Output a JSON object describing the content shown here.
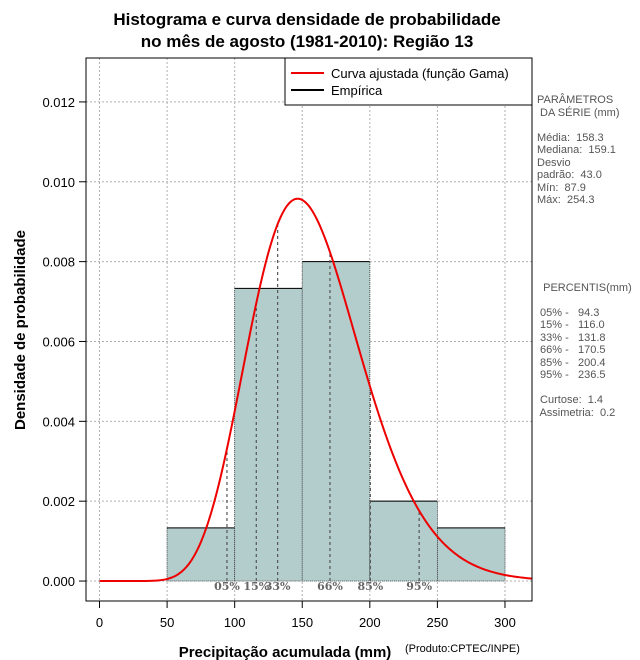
{
  "chart_data": {
    "type": "histogram",
    "title": [
      "Histograma e curva densidade de probabilidade",
      "no mês de agosto (1981-2010): Região 13"
    ],
    "xlabel": "Precipitação acumulada (mm)",
    "ylabel": "Densidade de probabilidade",
    "credit": "(Produto:CPTEC/INPE)",
    "xlim": [
      -10,
      320
    ],
    "ylim": [
      -0.0005,
      0.0131
    ],
    "x_ticks": [
      0,
      50,
      100,
      150,
      200,
      250,
      300
    ],
    "y_ticks": [
      0.0,
      0.002,
      0.004,
      0.006,
      0.008,
      0.01,
      0.012
    ],
    "y_tick_labels": [
      "0.000",
      "0.002",
      "0.004",
      "0.006",
      "0.008",
      "0.010",
      "0.012"
    ],
    "grid": true,
    "legend_position": "top-right",
    "legend": [
      {
        "label": "Curva ajustada (função Gama)",
        "color": "#ee0000"
      },
      {
        "label": "Empírica",
        "color": "#000000"
      }
    ],
    "bins": [
      {
        "x0": 50,
        "x1": 100,
        "density": 0.00133
      },
      {
        "x0": 100,
        "x1": 150,
        "density": 0.00733
      },
      {
        "x0": 150,
        "x1": 200,
        "density": 0.008
      },
      {
        "x0": 200,
        "x1": 250,
        "density": 0.002
      },
      {
        "x0": 250,
        "x1": 300,
        "density": 0.00133
      }
    ],
    "bar_color": "#b3cccc",
    "curve_color": "#ee0000",
    "gamma_fit": {
      "mean": 158.3,
      "sd": 43.0
    },
    "percentiles": [
      {
        "label": "05%",
        "value": 94.3
      },
      {
        "label": "15%",
        "value": 116.0
      },
      {
        "label": "33%",
        "value": 131.8
      },
      {
        "label": "66%",
        "value": 170.5
      },
      {
        "label": "85%",
        "value": 200.4
      },
      {
        "label": "95%",
        "value": 236.5
      }
    ]
  },
  "stats_panel": {
    "lines": [
      "PARÂMETROS",
      " DA SÉRIE (mm)",
      "",
      "Média:  158.3",
      "Mediana:  159.1",
      "Desvio",
      "padrão:  43.0",
      "Mín:  87.9",
      "Máx:  254.3",
      "",
      "",
      "",
      "",
      "",
      "",
      "  PERCENTIS(mm)",
      "",
      " 05% -   94.3",
      " 15% -   116.0",
      " 33% -   131.8",
      " 66% -   170.5",
      " 85% -   200.4",
      " 95% -   236.5",
      "",
      " Curtose:  1.4",
      " Assimetria:  0.2"
    ]
  }
}
